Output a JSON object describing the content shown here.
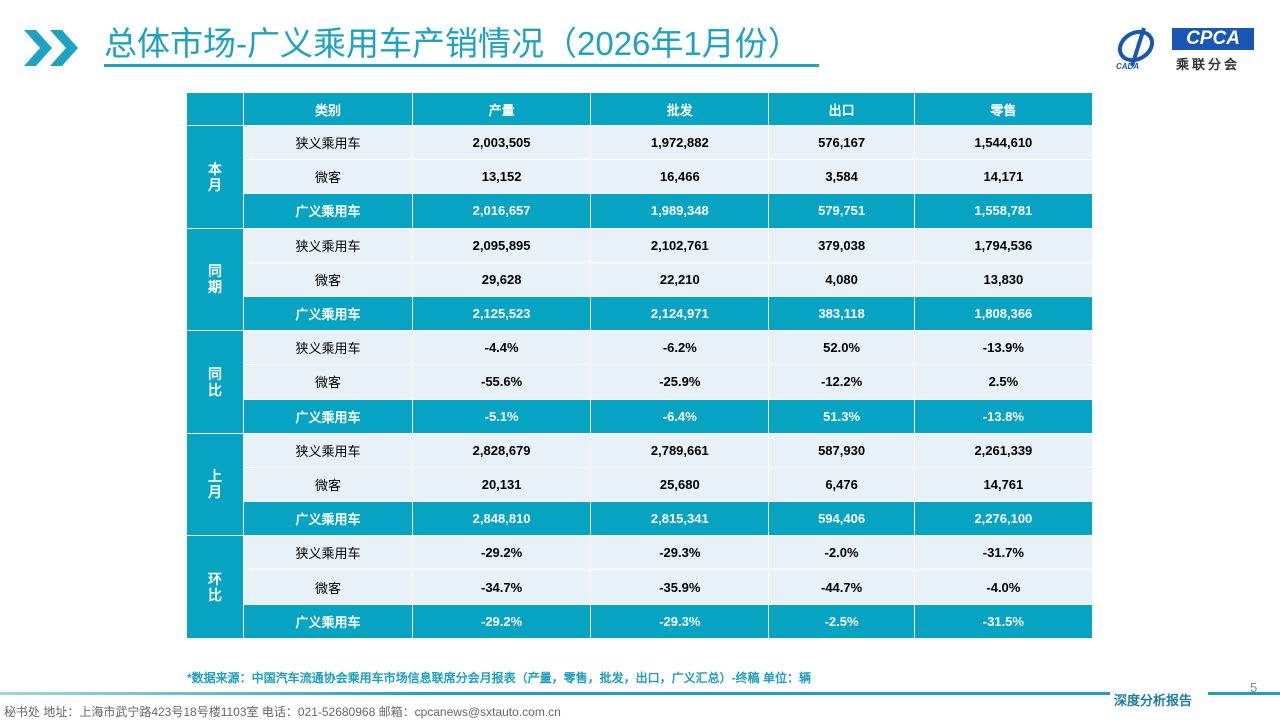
{
  "header": {
    "title": "总体市场-广义乘用车产销情况（2026年1月份）",
    "logo_text": "CPCA",
    "logo_subtitle": "乘联分会",
    "logo_small": "CADA"
  },
  "table": {
    "columns": [
      "类别",
      "产量",
      "批发",
      "出口",
      "零售"
    ],
    "groups": [
      {
        "label": "本月",
        "rows": [
          {
            "category": "狭义乘用车",
            "values": [
              "2,003,505",
              "1,972,882",
              "576,167",
              "1,544,610"
            ]
          },
          {
            "category": "微客",
            "values": [
              "13,152",
              "16,466",
              "3,584",
              "14,171"
            ]
          },
          {
            "category": "广义乘用车",
            "values": [
              "2,016,657",
              "1,989,348",
              "579,751",
              "1,558,781"
            ]
          }
        ]
      },
      {
        "label": "同期",
        "rows": [
          {
            "category": "狭义乘用车",
            "values": [
              "2,095,895",
              "2,102,761",
              "379,038",
              "1,794,536"
            ]
          },
          {
            "category": "微客",
            "values": [
              "29,628",
              "22,210",
              "4,080",
              "13,830"
            ]
          },
          {
            "category": "广义乘用车",
            "values": [
              "2,125,523",
              "2,124,971",
              "383,118",
              "1,808,366"
            ]
          }
        ]
      },
      {
        "label": "同比",
        "rows": [
          {
            "category": "狭义乘用车",
            "values": [
              "-4.4%",
              "-6.2%",
              "52.0%",
              "-13.9%"
            ]
          },
          {
            "category": "微客",
            "values": [
              "-55.6%",
              "-25.9%",
              "-12.2%",
              "2.5%"
            ]
          },
          {
            "category": "广义乘用车",
            "values": [
              "-5.1%",
              "-6.4%",
              "51.3%",
              "-13.8%"
            ]
          }
        ]
      },
      {
        "label": "上月",
        "rows": [
          {
            "category": "狭义乘用车",
            "values": [
              "2,828,679",
              "2,789,661",
              "587,930",
              "2,261,339"
            ]
          },
          {
            "category": "微客",
            "values": [
              "20,131",
              "25,680",
              "6,476",
              "14,761"
            ]
          },
          {
            "category": "广义乘用车",
            "values": [
              "2,848,810",
              "2,815,341",
              "594,406",
              "2,276,100"
            ]
          }
        ]
      },
      {
        "label": "环比",
        "rows": [
          {
            "category": "狭义乘用车",
            "values": [
              "-29.2%",
              "-29.3%",
              "-2.0%",
              "-31.7%"
            ]
          },
          {
            "category": "微客",
            "values": [
              "-34.7%",
              "-35.9%",
              "-44.7%",
              "-4.0%"
            ]
          },
          {
            "category": "广义乘用车",
            "values": [
              "-29.2%",
              "-29.3%",
              "-2.5%",
              "-31.5%"
            ]
          }
        ]
      }
    ]
  },
  "footer": {
    "source": "*数据来源：中国汽车流通协会乘用车市场信息联席分会月报表（产量，零售，批发，出口，广义汇总）-终稿    单位：辆",
    "page": "5",
    "tag": "深度分析报告",
    "address": "秘书处  地址：上海市武宁路423号18号楼1103室  电话：021-52680968   邮箱：cpcanews@sxtauto.com.cn"
  },
  "colors": {
    "accent": "#07a3c3",
    "row_light": "#e8f0f8",
    "logo_blue": "#1a56b5"
  }
}
